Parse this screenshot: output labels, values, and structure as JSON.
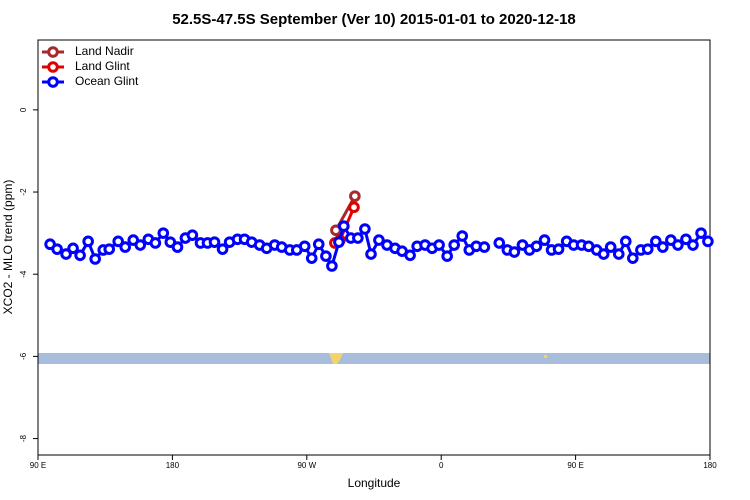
{
  "chart_data": {
    "type": "line",
    "title": "52.5S-47.5S September (Ver 10)   2015-01-01 to 2020-12-18",
    "x_label": "Longitude",
    "y_label": "XCO2 - MLO trend (ppm)",
    "xlim": [
      90,
      540
    ],
    "xticks": [
      {
        "value": 90,
        "label": "90 E"
      },
      180,
      {
        "value": 270,
        "label": "90 W"
      },
      {
        "value": 360,
        "label": "0"
      },
      {
        "value": 450,
        "label": "90 E"
      },
      {
        "value": 540,
        "label": "180"
      }
    ],
    "ylim": [
      -8.4,
      1.7
    ],
    "yticks": [
      0,
      -2,
      -4,
      -6,
      -8
    ],
    "legend": "top-left",
    "series": [
      {
        "name": "Land Nadir",
        "color": "#a52a2a",
        "x": [
          289.5,
          302.2
        ],
        "values": [
          -2.93,
          -2.1
        ]
      },
      {
        "name": "Land Glint",
        "color": "#e00000",
        "x": [
          288.8,
          292.2,
          301.6
        ],
        "values": [
          -3.24,
          -3.17,
          -2.37
        ]
      },
      {
        "name": "Ocean Glint",
        "color": "#0000ff",
        "x": [
          98.1,
          102.8,
          108.8,
          113.5,
          118.2,
          123.6,
          128.3,
          133.7,
          137.7,
          143.7,
          148.4,
          153.8,
          158.5,
          163.9,
          168.6,
          173.9,
          178.6,
          183.4,
          188.7,
          193.4,
          198.8,
          203.5,
          208.2,
          213.6,
          218.3,
          223.6,
          228.3,
          233.1,
          238.4,
          243.1,
          248.5,
          253.2,
          258.6,
          263.3,
          268.6,
          273.3,
          278.0,
          282.8,
          286.8,
          291.5,
          294.8,
          299.5,
          304.2,
          308.9,
          313.0,
          318.3,
          323.7,
          329.1,
          333.8,
          339.2,
          343.9,
          349.2,
          353.9,
          358.6,
          364.0,
          368.7,
          374.1,
          378.8,
          383.5,
          388.9,
          393.6,
          398.9,
          404.3,
          409.0,
          414.4,
          419.1,
          423.8,
          429.2,
          433.9,
          438.6,
          444.0,
          448.7,
          454.0,
          458.7,
          464.1,
          468.8,
          473.5,
          478.9,
          483.6,
          488.3,
          493.7,
          498.3,
          503.7,
          508.4,
          513.8,
          518.5,
          523.9,
          528.6,
          534.0,
          538.6
        ],
        "values": [
          -3.27,
          -3.39,
          -3.51,
          -3.37,
          -3.54,
          -3.2,
          -3.63,
          -3.41,
          -3.39,
          -3.2,
          -3.34,
          -3.17,
          -3.29,
          -3.15,
          -3.24,
          -3.0,
          -3.22,
          -3.34,
          -3.12,
          -3.05,
          -3.24,
          -3.24,
          -3.22,
          -3.39,
          -3.22,
          -3.15,
          -3.15,
          -3.22,
          -3.29,
          -3.37,
          -3.29,
          -3.34,
          -3.41,
          -3.41,
          -3.32,
          -3.61,
          -3.27,
          -3.56,
          -3.8,
          -3.22,
          -2.83,
          -3.12,
          -3.12,
          -2.9,
          -3.51,
          -3.17,
          -3.29,
          -3.37,
          -3.44,
          -3.54,
          -3.32,
          -3.29,
          -3.37,
          -3.29,
          -3.56,
          -3.29,
          -3.07,
          -3.41,
          -3.32,
          -3.34,
          null,
          -3.24,
          -3.41,
          -3.46,
          -3.29,
          -3.41,
          -3.32,
          -3.17,
          -3.41,
          -3.39,
          -3.2,
          -3.29,
          -3.29,
          -3.32,
          -3.41,
          -3.51,
          -3.34,
          -3.51,
          -3.2,
          -3.61,
          -3.41,
          -3.39,
          -3.2,
          -3.34,
          -3.17,
          -3.29,
          -3.15,
          -3.29,
          -3.0,
          -3.2
        ]
      }
    ]
  }
}
